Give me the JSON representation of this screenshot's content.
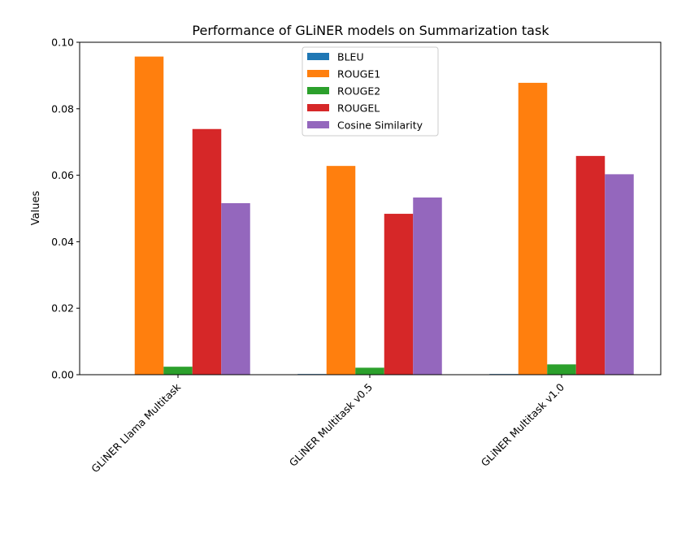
{
  "chart_data": {
    "type": "bar",
    "title": "Performance of GLiNER models on Summarization task",
    "xlabel": "",
    "ylabel": "Values",
    "ylim": [
      0,
      0.1
    ],
    "yticks": [
      "0.00",
      "0.02",
      "0.04",
      "0.06",
      "0.08",
      "0.10"
    ],
    "categories": [
      "GLiNER Llama Multitask",
      "GLiNER Multitask v0.5",
      "GLiNER Multitask v1.0"
    ],
    "series": [
      {
        "name": "BLEU",
        "color": "#1f77b4",
        "values": [
          0.0,
          0.0002,
          0.0002
        ]
      },
      {
        "name": "ROUGE1",
        "color": "#ff7f0e",
        "values": [
          0.0957,
          0.0628,
          0.0878
        ]
      },
      {
        "name": "ROUGE2",
        "color": "#2ca02c",
        "values": [
          0.0024,
          0.0021,
          0.0031
        ]
      },
      {
        "name": "ROUGEL",
        "color": "#d62728",
        "values": [
          0.0739,
          0.0484,
          0.0658
        ]
      },
      {
        "name": "Cosine Similarity",
        "color": "#9467bd",
        "values": [
          0.0516,
          0.0533,
          0.0603
        ]
      }
    ],
    "legend_position": "top-center",
    "grid": false
  }
}
